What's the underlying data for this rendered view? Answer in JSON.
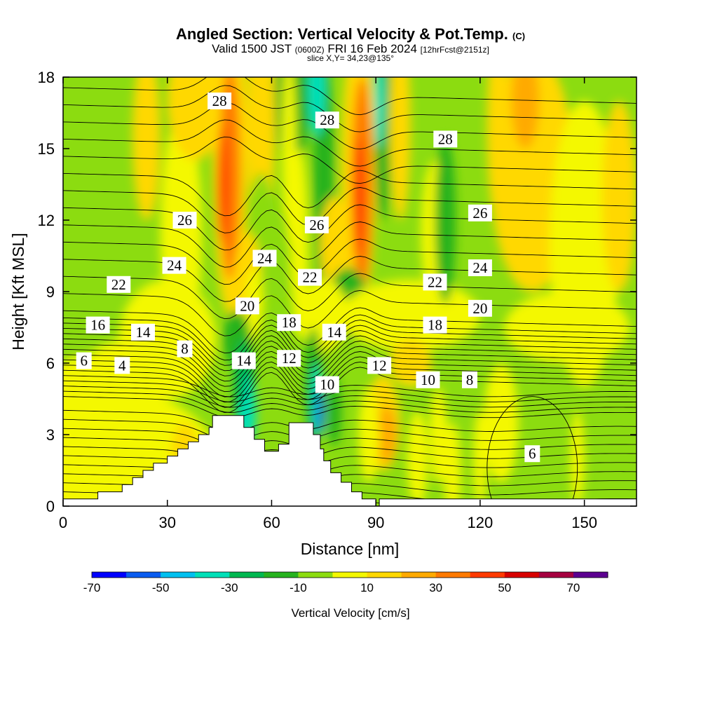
{
  "title": {
    "main": "Angled Section: Vertical Velocity & Pot.Temp.",
    "main_suffix": "(C)",
    "line2_a": "Valid 1500 JST",
    "line2_b": "(0600Z)",
    "line2_c": "FRI 16 Feb 2024",
    "line2_d": "[12hrFcst@2151z]",
    "line3": "slice X,Y= 34,23@135°"
  },
  "chart_data": {
    "type": "heatmap",
    "xlabel": "Distance [nm]",
    "ylabel": "Height [Kft MSL]",
    "xlim": [
      0,
      165
    ],
    "ylim": [
      0,
      18
    ],
    "x_ticks": [
      "0",
      "30",
      "60",
      "90",
      "120",
      "150"
    ],
    "y_ticks": [
      "0",
      "3",
      "6",
      "9",
      "12",
      "15",
      "18"
    ],
    "colorbar": {
      "label": "Vertical Velocity [cm/s]",
      "bounds": [
        -70,
        80
      ],
      "step": 10,
      "tick_labels": [
        "-70",
        "-50",
        "-30",
        "-10",
        "10",
        "30",
        "50",
        "70"
      ],
      "colors": [
        "#0000ff",
        "#0a5cf0",
        "#00c0f0",
        "#00e0b8",
        "#00b850",
        "#26b21e",
        "#8cdc10",
        "#f4f800",
        "#ffd800",
        "#ffaa00",
        "#ff7a00",
        "#ff3a00",
        "#d80000",
        "#a60040",
        "#5c0090"
      ]
    },
    "terrain": [
      [
        0,
        0.3
      ],
      [
        10,
        0.3
      ],
      [
        10,
        0.6
      ],
      [
        17,
        0.6
      ],
      [
        17,
        0.9
      ],
      [
        20,
        0.9
      ],
      [
        20,
        1.2
      ],
      [
        23,
        1.2
      ],
      [
        23,
        1.5
      ],
      [
        26,
        1.5
      ],
      [
        26,
        1.8
      ],
      [
        30,
        1.8
      ],
      [
        30,
        2.1
      ],
      [
        33,
        2.1
      ],
      [
        33,
        2.4
      ],
      [
        36,
        2.4
      ],
      [
        36,
        2.7
      ],
      [
        39,
        2.7
      ],
      [
        39,
        3.0
      ],
      [
        42,
        3.0
      ],
      [
        42,
        3.3
      ],
      [
        43,
        3.3
      ],
      [
        43,
        3.8
      ],
      [
        52,
        3.8
      ],
      [
        52,
        3.3
      ],
      [
        55,
        3.3
      ],
      [
        55,
        2.8
      ],
      [
        58,
        2.8
      ],
      [
        58,
        2.3
      ],
      [
        62,
        2.3
      ],
      [
        62,
        2.6
      ],
      [
        65,
        2.6
      ],
      [
        65,
        3.5
      ],
      [
        72,
        3.5
      ],
      [
        72,
        3.0
      ],
      [
        74,
        3.0
      ],
      [
        74,
        2.4
      ],
      [
        75,
        2.4
      ],
      [
        75,
        1.9
      ],
      [
        77,
        1.9
      ],
      [
        77,
        1.4
      ],
      [
        80,
        1.4
      ],
      [
        80,
        1.0
      ],
      [
        83,
        1.0
      ],
      [
        83,
        0.6
      ],
      [
        86,
        0.6
      ],
      [
        86,
        0.3
      ],
      [
        90,
        0.3
      ],
      [
        90,
        0.0
      ],
      [
        91,
        0.0
      ],
      [
        91,
        0.3
      ],
      [
        165,
        0.3
      ]
    ],
    "contour_labels": [
      {
        "text": "28",
        "x": 45,
        "y": 17.0
      },
      {
        "text": "28",
        "x": 76,
        "y": 16.2
      },
      {
        "text": "28",
        "x": 110,
        "y": 15.4
      },
      {
        "text": "26",
        "x": 35,
        "y": 12.0
      },
      {
        "text": "26",
        "x": 73,
        "y": 11.8
      },
      {
        "text": "26",
        "x": 120,
        "y": 12.3
      },
      {
        "text": "24",
        "x": 32,
        "y": 10.1
      },
      {
        "text": "24",
        "x": 58,
        "y": 10.4
      },
      {
        "text": "24",
        "x": 120,
        "y": 10.0
      },
      {
        "text": "22",
        "x": 16,
        "y": 9.3
      },
      {
        "text": "22",
        "x": 71,
        "y": 9.6
      },
      {
        "text": "22",
        "x": 107,
        "y": 9.4
      },
      {
        "text": "20",
        "x": 53,
        "y": 8.4
      },
      {
        "text": "20",
        "x": 120,
        "y": 8.3
      },
      {
        "text": "18",
        "x": 65,
        "y": 7.7
      },
      {
        "text": "18",
        "x": 107,
        "y": 7.6
      },
      {
        "text": "16",
        "x": 10,
        "y": 7.6
      },
      {
        "text": "14",
        "x": 23,
        "y": 7.3
      },
      {
        "text": "14",
        "x": 78,
        "y": 7.3
      },
      {
        "text": "14",
        "x": 52,
        "y": 6.1
      },
      {
        "text": "12",
        "x": 65,
        "y": 6.2
      },
      {
        "text": "12",
        "x": 91,
        "y": 5.9
      },
      {
        "text": "10",
        "x": 76,
        "y": 5.1
      },
      {
        "text": "10",
        "x": 105,
        "y": 5.3
      },
      {
        "text": "8",
        "x": 35,
        "y": 6.6
      },
      {
        "text": "8",
        "x": 117,
        "y": 5.3
      },
      {
        "text": "6",
        "x": 6,
        "y": 6.1
      },
      {
        "text": "6",
        "x": 135,
        "y": 2.2
      },
      {
        "text": "4",
        "x": 17,
        "y": 5.9
      }
    ],
    "grid": false
  }
}
